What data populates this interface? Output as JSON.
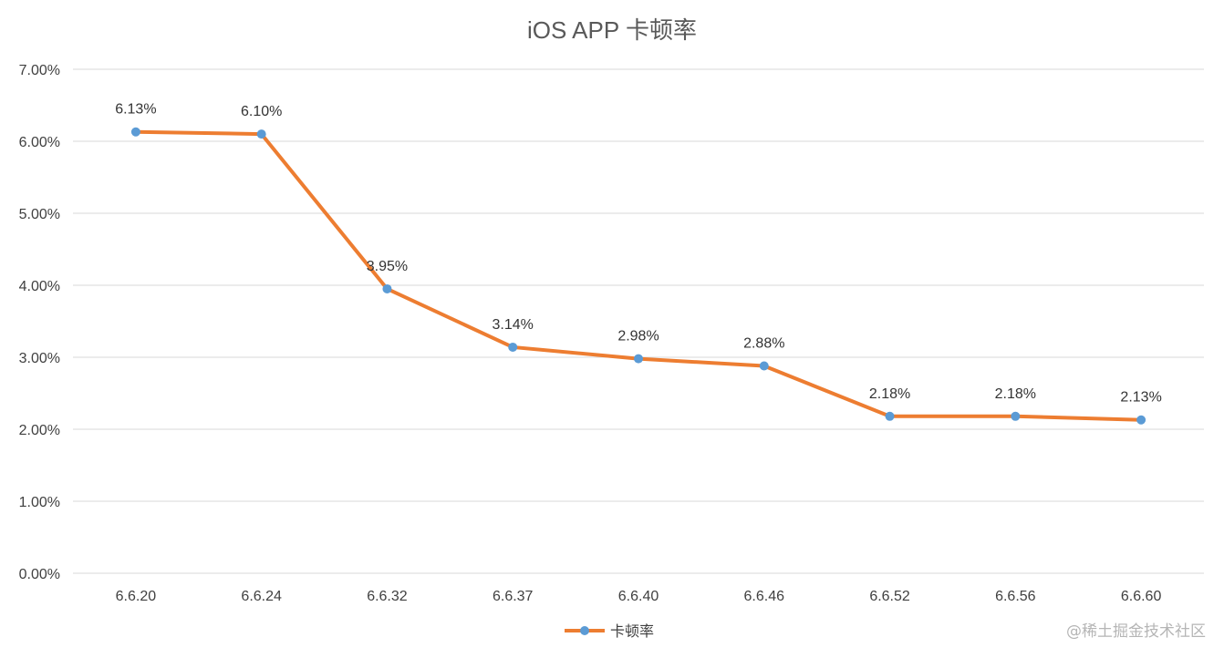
{
  "watermark": "@稀土掘金技术社区",
  "chart_data": {
    "type": "line",
    "title": "iOS APP 卡顿率",
    "xlabel": "",
    "ylabel": "",
    "categories": [
      "6.6.20",
      "6.6.24",
      "6.6.32",
      "6.6.37",
      "6.6.40",
      "6.6.46",
      "6.6.52",
      "6.6.56",
      "6.6.60"
    ],
    "series": [
      {
        "name": "卡顿率",
        "values": [
          6.13,
          6.1,
          3.95,
          3.14,
          2.98,
          2.88,
          2.18,
          2.18,
          2.13
        ],
        "data_labels": [
          "6.13%",
          "6.10%",
          "3.95%",
          "3.14%",
          "2.98%",
          "2.88%",
          "2.18%",
          "2.18%",
          "2.13%"
        ],
        "line_color": "#ED7D31",
        "marker_color": "#5B9BD5"
      }
    ],
    "y_ticks": [
      "0.00%",
      "1.00%",
      "2.00%",
      "3.00%",
      "4.00%",
      "5.00%",
      "6.00%",
      "7.00%"
    ],
    "ylim": [
      0,
      7
    ],
    "grid": true,
    "gridline_color": "#D9D9D9",
    "legend_position": "bottom"
  }
}
